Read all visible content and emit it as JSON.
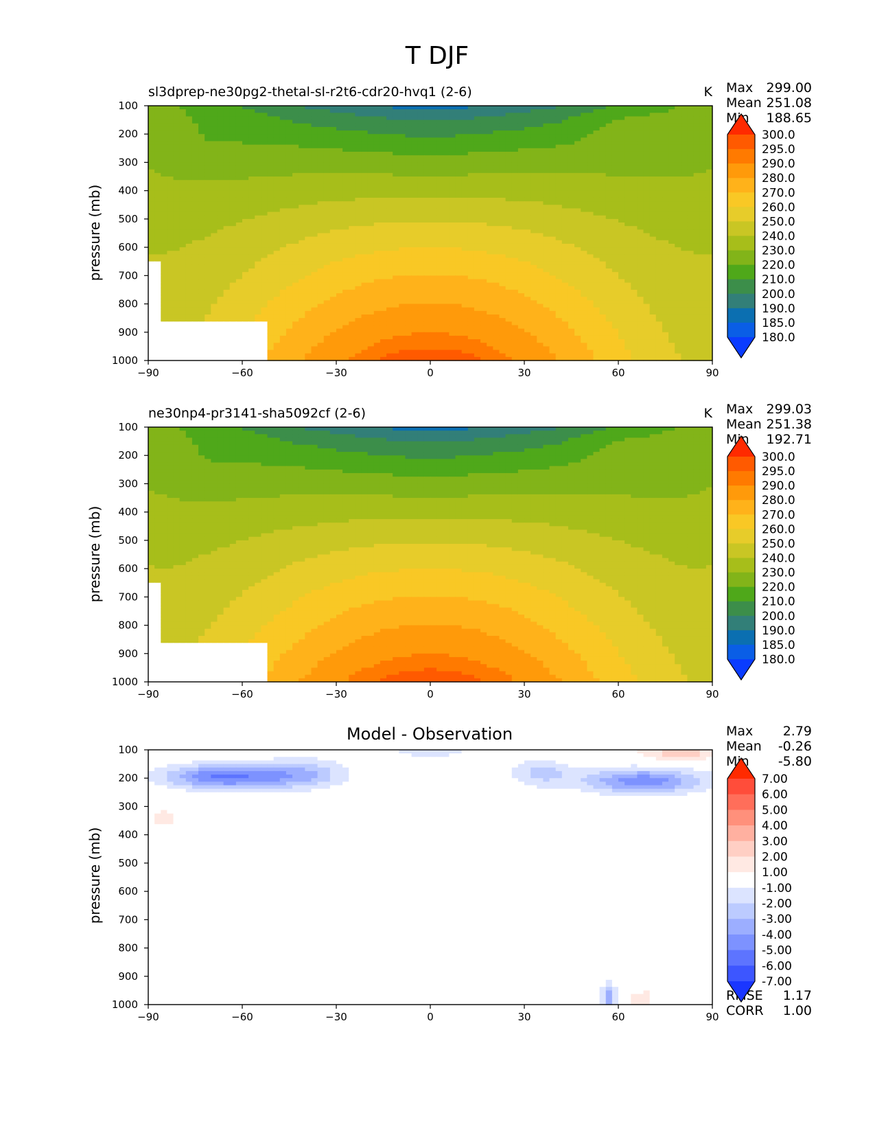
{
  "figure": {
    "title": "T DJF",
    "colorbar_abs": {
      "levels": [
        "300.0",
        "295.0",
        "290.0",
        "280.0",
        "270.0",
        "260.0",
        "250.0",
        "240.0",
        "230.0",
        "220.0",
        "210.0",
        "200.0",
        "190.0",
        "185.0",
        "180.0"
      ],
      "colors": [
        "#ff2a00",
        "#ff5a00",
        "#ff7a00",
        "#ff9a0a",
        "#ffb21a",
        "#f9c825",
        "#e7cc2a",
        "#c9c624",
        "#a7be1a",
        "#82b419",
        "#4fa81a",
        "#3c8e4a",
        "#327f78",
        "#0b6fb1",
        "#0a5ee6",
        "#0a3cff"
      ]
    },
    "colorbar_diff": {
      "levels": [
        "7.00",
        "6.00",
        "5.00",
        "4.00",
        "3.00",
        "2.00",
        "1.00",
        "-1.00",
        "-2.00",
        "-3.00",
        "-4.00",
        "-5.00",
        "-6.00",
        "-7.00"
      ],
      "colors": [
        "#ff2a00",
        "#ff4d3a",
        "#ff6e5a",
        "#ff907b",
        "#ffb0a0",
        "#ffcfc4",
        "#ffe9e3",
        "#ffffff",
        "#dce4ff",
        "#bccbff",
        "#9caeff",
        "#7d92ff",
        "#5d74ff",
        "#3d56ff",
        "#1a36ff"
      ]
    }
  },
  "chart_data": [
    {
      "type": "contour",
      "title": "sl3dprep-ne30pg2-thetal-sl-r2t6-cdr20-hvq1 (2-6)",
      "units": "K",
      "xlabel": "",
      "ylabel": "pressure (mb)",
      "xlim": [
        -90,
        90
      ],
      "ylim": [
        1000,
        100
      ],
      "xticks": [
        "−90",
        "−60",
        "−30",
        "0",
        "30",
        "60",
        "90"
      ],
      "yticks": [
        "100",
        "200",
        "300",
        "400",
        "500",
        "600",
        "700",
        "800",
        "900",
        "1000"
      ],
      "stats": {
        "max_label": "Max",
        "max": "299.00",
        "mean_label": "Mean",
        "mean": "251.08",
        "min_label": "Min",
        "min": "188.65"
      },
      "core_temp": 299.0
    },
    {
      "type": "contour",
      "title": "ne30np4-pr3141-sha5092cf (2-6)",
      "units": "K",
      "xlabel": "",
      "ylabel": "pressure (mb)",
      "xlim": [
        -90,
        90
      ],
      "ylim": [
        1000,
        100
      ],
      "xticks": [
        "−90",
        "−60",
        "−30",
        "0",
        "30",
        "60",
        "90"
      ],
      "yticks": [
        "100",
        "200",
        "300",
        "400",
        "500",
        "600",
        "700",
        "800",
        "900",
        "1000"
      ],
      "stats": {
        "max_label": "Max",
        "max": "299.03",
        "mean_label": "Mean",
        "mean": "251.38",
        "min_label": "Min",
        "min": "192.71"
      },
      "core_temp": 299.03
    },
    {
      "type": "contour",
      "title": "Model - Observation",
      "units": "",
      "xlabel": "",
      "ylabel": "pressure (mb)",
      "xlim": [
        -90,
        90
      ],
      "ylim": [
        1000,
        100
      ],
      "xticks": [
        "−90",
        "−60",
        "−30",
        "0",
        "30",
        "60",
        "90"
      ],
      "yticks": [
        "100",
        "200",
        "300",
        "400",
        "500",
        "600",
        "700",
        "800",
        "900",
        "1000"
      ],
      "stats": {
        "max_label": "Max",
        "max": "2.79",
        "mean_label": "Mean",
        "mean": "-0.26",
        "min_label": "Min",
        "min": "-5.80",
        "rmse_label": "RMSE",
        "rmse": "1.17",
        "corr_label": "CORR",
        "corr": "1.00"
      }
    }
  ]
}
